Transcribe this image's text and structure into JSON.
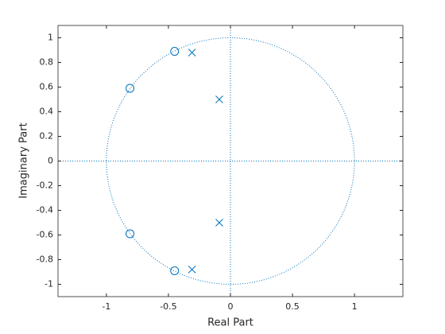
{
  "chart_data": {
    "type": "zplane",
    "xlabel": "Real Part",
    "ylabel": "Imaginary Part",
    "xlim": [
      -1.39,
      1.39
    ],
    "ylim": [
      -1.1,
      1.1
    ],
    "xticks": [
      -1,
      -0.5,
      0,
      0.5,
      1
    ],
    "yticks": [
      -1,
      -0.8,
      -0.6,
      -0.4,
      -0.2,
      0,
      0.2,
      0.4,
      0.6,
      0.8,
      1
    ],
    "unit_circle": true,
    "series": [
      {
        "marker": "o",
        "color": "#0072bd",
        "x": [
          -0.45,
          -0.81,
          -0.81,
          -0.45
        ],
        "y": [
          0.89,
          0.59,
          -0.59,
          -0.89
        ]
      },
      {
        "marker": "x",
        "color": "#0072bd",
        "x": [
          -0.31,
          -0.09,
          -0.09,
          -0.31
        ],
        "y": [
          0.88,
          0.5,
          -0.5,
          -0.88
        ]
      }
    ]
  }
}
